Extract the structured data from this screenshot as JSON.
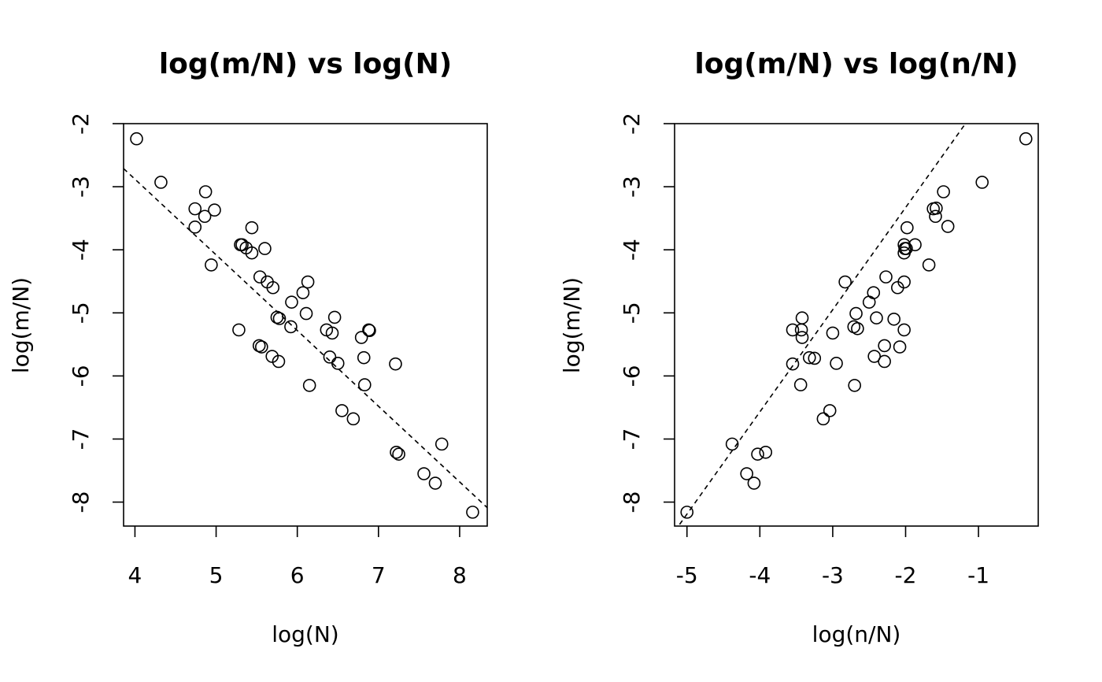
{
  "chart_data": [
    {
      "type": "scatter",
      "title": "log(m/N) vs log(N)",
      "xlabel": "log(N)",
      "ylabel": "log(m/N)",
      "xlim": [
        3.86,
        8.34
      ],
      "ylim": [
        -8.38,
        -2.0
      ],
      "x_ticks": [
        4,
        5,
        6,
        7,
        8
      ],
      "y_ticks": [
        -8,
        -7,
        -6,
        -5,
        -4,
        -3,
        -2
      ],
      "x_tick_labels": [
        "4",
        "5",
        "6",
        "7",
        "8"
      ],
      "y_tick_labels": [
        "-8",
        "-7",
        "-6",
        "-5",
        "-4",
        "-3",
        "-2"
      ],
      "grid": false,
      "legend": "none",
      "marker": "open-circle",
      "reference_line": {
        "style": "dashed",
        "intercept": 1.92,
        "slope": -1.2
      },
      "points": [
        [
          4.02,
          -2.24
        ],
        [
          4.32,
          -2.93
        ],
        [
          4.74,
          -3.35
        ],
        [
          4.74,
          -3.64
        ],
        [
          4.87,
          -3.08
        ],
        [
          4.86,
          -3.47
        ],
        [
          4.98,
          -3.37
        ],
        [
          4.94,
          -4.24
        ],
        [
          5.44,
          -3.65
        ],
        [
          5.3,
          -3.92
        ],
        [
          5.32,
          -3.92
        ],
        [
          5.37,
          -3.97
        ],
        [
          5.44,
          -4.05
        ],
        [
          5.6,
          -3.98
        ],
        [
          5.54,
          -4.43
        ],
        [
          5.63,
          -4.51
        ],
        [
          5.7,
          -4.6
        ],
        [
          6.13,
          -4.51
        ],
        [
          6.07,
          -4.68
        ],
        [
          5.93,
          -4.83
        ],
        [
          5.75,
          -5.07
        ],
        [
          5.78,
          -5.09
        ],
        [
          5.92,
          -5.22
        ],
        [
          6.11,
          -5.01
        ],
        [
          5.28,
          -5.27
        ],
        [
          6.36,
          -5.27
        ],
        [
          6.43,
          -5.32
        ],
        [
          6.46,
          -5.07
        ],
        [
          6.88,
          -5.27
        ],
        [
          6.89,
          -5.28
        ],
        [
          6.79,
          -5.39
        ],
        [
          5.53,
          -5.52
        ],
        [
          5.56,
          -5.54
        ],
        [
          5.69,
          -5.69
        ],
        [
          5.77,
          -5.77
        ],
        [
          6.4,
          -5.7
        ],
        [
          6.5,
          -5.8
        ],
        [
          6.82,
          -5.71
        ],
        [
          7.21,
          -5.81
        ],
        [
          6.15,
          -6.15
        ],
        [
          6.83,
          -6.14
        ],
        [
          6.55,
          -6.55
        ],
        [
          6.69,
          -6.68
        ],
        [
          7.78,
          -7.08
        ],
        [
          7.22,
          -7.21
        ],
        [
          7.25,
          -7.24
        ],
        [
          7.56,
          -7.55
        ],
        [
          7.7,
          -7.7
        ],
        [
          8.16,
          -8.16
        ]
      ]
    },
    {
      "type": "scatter",
      "title": "log(m/N) vs log(n/N)",
      "xlabel": "log(n/N)",
      "ylabel": "log(m/N)",
      "xlim": [
        -5.17,
        -0.18
      ],
      "ylim": [
        -8.38,
        -2.0
      ],
      "x_ticks": [
        -5,
        -4,
        -3,
        -2,
        -1
      ],
      "y_ticks": [
        -8,
        -7,
        -6,
        -5,
        -4,
        -3,
        -2
      ],
      "x_tick_labels": [
        "-5",
        "-4",
        "-3",
        "-2",
        "-1"
      ],
      "y_tick_labels": [
        "-8",
        "-7",
        "-6",
        "-5",
        "-4",
        "-3",
        "-2"
      ],
      "grid": false,
      "legend": "none",
      "marker": "open-circle",
      "reference_line": {
        "style": "dashed",
        "intercept": -0.09,
        "slope": 1.62
      },
      "points": [
        [
          -0.35,
          -2.24
        ],
        [
          -0.95,
          -2.93
        ],
        [
          -1.48,
          -3.08
        ],
        [
          -1.62,
          -3.35
        ],
        [
          -1.58,
          -3.34
        ],
        [
          -1.59,
          -3.47
        ],
        [
          -1.42,
          -3.63
        ],
        [
          -1.98,
          -3.65
        ],
        [
          -1.87,
          -3.92
        ],
        [
          -2.02,
          -3.92
        ],
        [
          -2.01,
          -3.98
        ],
        [
          -1.99,
          -3.98
        ],
        [
          -2.02,
          -4.05
        ],
        [
          -1.68,
          -4.24
        ],
        [
          -2.27,
          -4.43
        ],
        [
          -2.02,
          -4.51
        ],
        [
          -2.83,
          -4.51
        ],
        [
          -2.11,
          -4.6
        ],
        [
          -2.44,
          -4.68
        ],
        [
          -2.5,
          -4.83
        ],
        [
          -2.68,
          -5.01
        ],
        [
          -2.4,
          -5.08
        ],
        [
          -2.16,
          -5.1
        ],
        [
          -3.42,
          -5.08
        ],
        [
          -2.71,
          -5.22
        ],
        [
          -2.66,
          -5.25
        ],
        [
          -3.43,
          -5.27
        ],
        [
          -3.55,
          -5.27
        ],
        [
          -2.02,
          -5.27
        ],
        [
          -3.0,
          -5.32
        ],
        [
          -3.42,
          -5.39
        ],
        [
          -2.29,
          -5.52
        ],
        [
          -2.08,
          -5.54
        ],
        [
          -2.43,
          -5.69
        ],
        [
          -3.32,
          -5.71
        ],
        [
          -3.25,
          -5.72
        ],
        [
          -3.55,
          -5.81
        ],
        [
          -2.95,
          -5.8
        ],
        [
          -2.29,
          -5.77
        ],
        [
          -3.44,
          -6.14
        ],
        [
          -2.7,
          -6.15
        ],
        [
          -3.04,
          -6.55
        ],
        [
          -3.13,
          -6.68
        ],
        [
          -4.38,
          -7.08
        ],
        [
          -3.92,
          -7.21
        ],
        [
          -4.03,
          -7.24
        ],
        [
          -4.18,
          -7.55
        ],
        [
          -4.08,
          -7.7
        ],
        [
          -5.0,
          -8.16
        ]
      ]
    }
  ]
}
